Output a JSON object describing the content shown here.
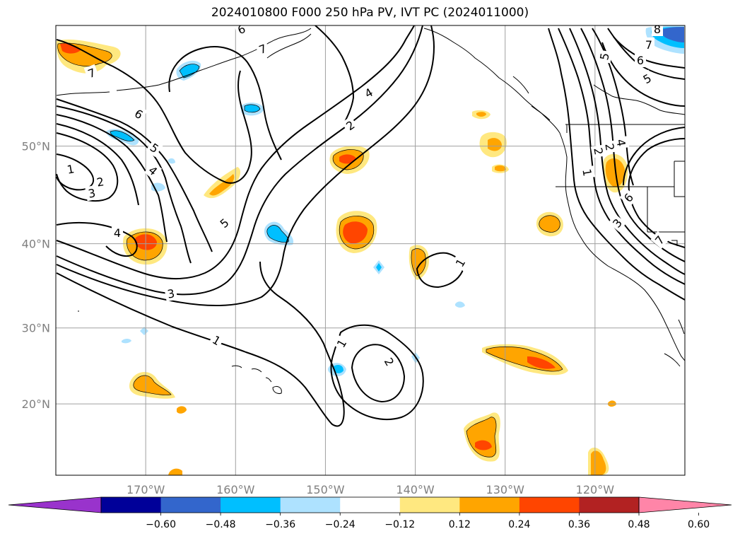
{
  "chart_data": {
    "type": "contour-map",
    "title": "2024010800 F000 250 hPa PV, IVT PC (2024011000)",
    "lat_ticks": [
      "50°N",
      "40°N",
      "30°N",
      "20°N"
    ],
    "lat_values": [
      50,
      40,
      30,
      20
    ],
    "lon_ticks": [
      "170°W",
      "160°W",
      "150°W",
      "140°W",
      "130°W",
      "120°W"
    ],
    "lon_values": [
      -170,
      -160,
      -150,
      -140,
      -130,
      -120
    ],
    "extent": {
      "lon": [
        -180,
        -110
      ],
      "lat": [
        10,
        60
      ]
    },
    "grid": true,
    "colorbar": {
      "levels": [
        "−0.60",
        "−0.48",
        "−0.36",
        "−0.24",
        "−0.12",
        "0.12",
        "0.24",
        "0.36",
        "0.48",
        "0.60"
      ],
      "colors": [
        "#9933cc",
        "#000099",
        "#3366cc",
        "#00bfff",
        "#aee2ff",
        "#ffffff",
        "#ffe880",
        "#ffa500",
        "#ff4500",
        "#b22222",
        "#ff85a8"
      ],
      "extend": "both"
    },
    "contour_labels": [
      "7",
      "6",
      "5",
      "4",
      "3",
      "2",
      "1",
      "7",
      "6",
      "4",
      "5",
      "4",
      "3",
      "2",
      "1",
      "2",
      "1",
      "1",
      "2",
      "1",
      "4",
      "5",
      "6",
      "5",
      "7",
      "8",
      "1",
      "2",
      "4",
      "6",
      "3",
      "7"
    ]
  }
}
